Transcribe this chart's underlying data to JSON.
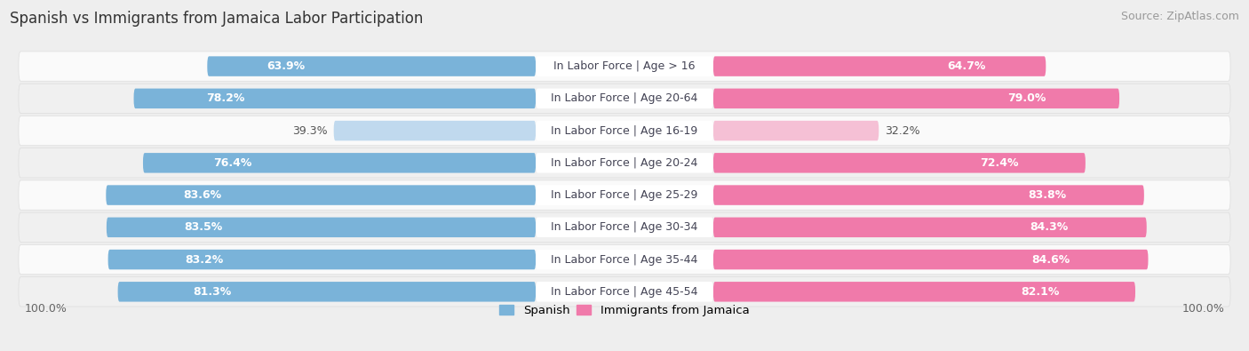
{
  "title": "Spanish vs Immigrants from Jamaica Labor Participation",
  "source": "Source: ZipAtlas.com",
  "categories": [
    "In Labor Force | Age > 16",
    "In Labor Force | Age 20-64",
    "In Labor Force | Age 16-19",
    "In Labor Force | Age 20-24",
    "In Labor Force | Age 25-29",
    "In Labor Force | Age 30-34",
    "In Labor Force | Age 35-44",
    "In Labor Force | Age 45-54"
  ],
  "spanish_values": [
    63.9,
    78.2,
    39.3,
    76.4,
    83.6,
    83.5,
    83.2,
    81.3
  ],
  "jamaica_values": [
    64.7,
    79.0,
    32.2,
    72.4,
    83.8,
    84.3,
    84.6,
    82.1
  ],
  "spanish_color": "#7ab3d9",
  "jamaica_color": "#f07aaa",
  "spanish_light_color": "#c0d9ee",
  "jamaica_light_color": "#f5c0d5",
  "bg_color": "#eeeeee",
  "row_bg_even": "#fafafa",
  "row_bg_odd": "#f0f0f0",
  "label_white": "#ffffff",
  "label_dark": "#555555",
  "center_label_color": "#444455",
  "title_fontsize": 12,
  "source_fontsize": 9,
  "bar_label_fontsize": 9,
  "category_fontsize": 9,
  "legend_fontsize": 9.5,
  "axis_label_fontsize": 9
}
